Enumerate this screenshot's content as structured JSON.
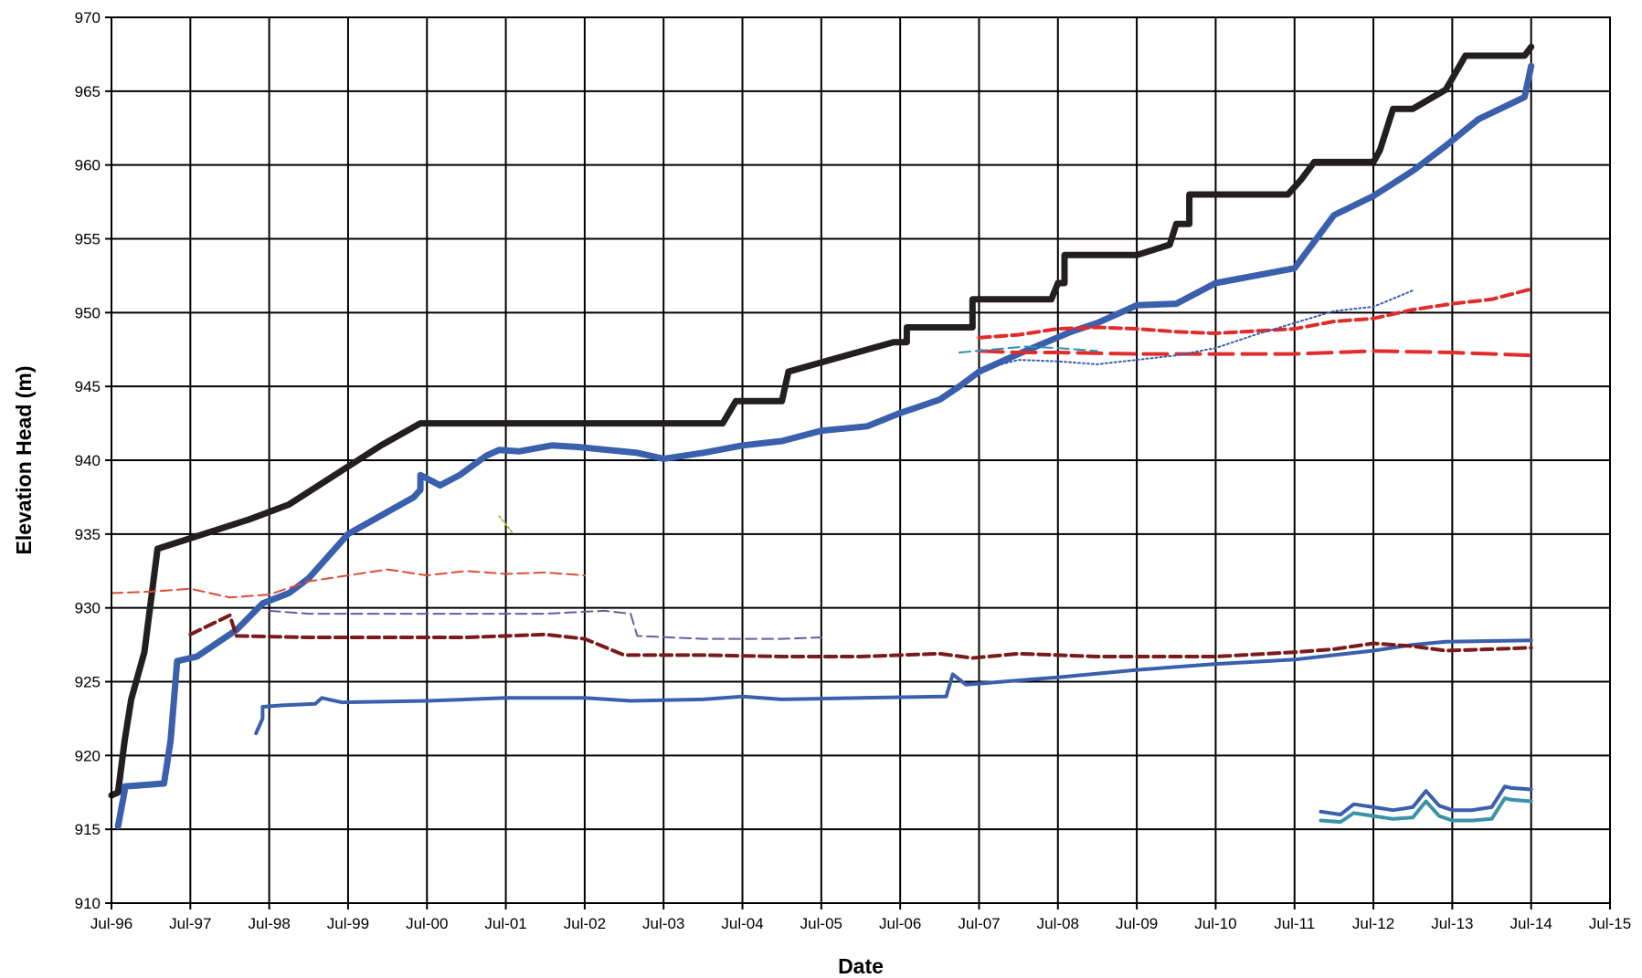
{
  "chart_data": {
    "type": "line",
    "title": "",
    "xlabel": "Date",
    "ylabel": "Elevation Head (m)",
    "x_axis": {
      "type": "date",
      "min": "1996-07",
      "max": "2015-07"
    },
    "ylim": [
      910,
      970
    ],
    "x_tick_labels": [
      "Jul-96",
      "Jul-97",
      "Jul-98",
      "Jul-99",
      "Jul-00",
      "Jul-01",
      "Jul-02",
      "Jul-03",
      "Jul-04",
      "Jul-05",
      "Jul-06",
      "Jul-07",
      "Jul-08",
      "Jul-09",
      "Jul-10",
      "Jul-11",
      "Jul-12",
      "Jul-13",
      "Jul-14",
      "Jul-15"
    ],
    "y_tick_labels": [
      "910",
      "915",
      "920",
      "925",
      "930",
      "935",
      "940",
      "945",
      "950",
      "955",
      "960",
      "965",
      "970"
    ],
    "grid": true,
    "legend": "none",
    "series": [
      {
        "color": "#231f20",
        "style": "solid",
        "weight": "heavy",
        "x": [
          "1996-07",
          "1996-08",
          "1996-09",
          "1996-10",
          "1996-10",
          "1996-12",
          "1996-12",
          "1997-02",
          "1997-02",
          "1998-04",
          "1998-04",
          "1998-10",
          "1998-10",
          "1999-12",
          "1999-12",
          "2000-06",
          "2000-06",
          "2004-04",
          "2004-06",
          "2004-06",
          "2005-01",
          "2005-02",
          "2006-06",
          "2006-08",
          "2006-08",
          "2007-06",
          "2007-06",
          "2008-06",
          "2008-07",
          "2008-08",
          "2008-08",
          "2009-07",
          "2009-12",
          "2010-01",
          "2010-03",
          "2010-03",
          "2011-06",
          "2011-08",
          "2011-10",
          "2012-07",
          "2012-08",
          "2012-10",
          "2013-01",
          "2013-06",
          "2013-09",
          "2014-06",
          "2014-07"
        ],
        "y": [
          917.3,
          917.5,
          921,
          923.8,
          923.8,
          927,
          927,
          934,
          934,
          936,
          936,
          937,
          937,
          941,
          941,
          942.5,
          942.5,
          942.5,
          944,
          944,
          944,
          946,
          948,
          948,
          949,
          949,
          950.9,
          950.9,
          952,
          952,
          953.9,
          953.9,
          954.6,
          956,
          956,
          958,
          958,
          959,
          960.2,
          960.2,
          961,
          963.8,
          963.8,
          965.1,
          967.4,
          967.4,
          968
        ]
      },
      {
        "color": "#3a5fad",
        "style": "solid",
        "weight": "heavy",
        "x": [
          "1996-08",
          "1996-09",
          "1996-09",
          "1997-03",
          "1997-04",
          "1997-05",
          "1997-08",
          "1998-02",
          "1998-06",
          "1998-10",
          "1999-01",
          "1999-07",
          "1999-11",
          "2000-05",
          "2000-06",
          "2000-06",
          "2000-09",
          "2000-12",
          "2001-04",
          "2001-06",
          "2001-09",
          "2002-02",
          "2002-06",
          "2003-03",
          "2003-07",
          "2004-01",
          "2004-07",
          "2005-01",
          "2005-07",
          "2006-02",
          "2006-07",
          "2007-01",
          "2007-04",
          "2007-07",
          "2008-01",
          "2008-09",
          "2009-01",
          "2009-07",
          "2010-01",
          "2010-07",
          "2011-07",
          "2012-01",
          "2012-07",
          "2013-01",
          "2013-06",
          "2013-11",
          "2014-06",
          "2014-07"
        ],
        "y": [
          915.2,
          917.6,
          917.9,
          918.1,
          921,
          926.4,
          926.7,
          928.5,
          930.3,
          931,
          932,
          935,
          936,
          937.5,
          938,
          939,
          938.3,
          939,
          940.3,
          940.7,
          940.6,
          941,
          940.9,
          940.5,
          940.1,
          940.5,
          941,
          941.3,
          942,
          942.3,
          943.2,
          944.1,
          945,
          946,
          947.2,
          948.7,
          949.3,
          950.5,
          950.6,
          952,
          953,
          956.6,
          957.9,
          959.6,
          961.3,
          963.1,
          964.6,
          966.7
        ]
      },
      {
        "color": "#3a5fad",
        "style": "solid",
        "weight": "medium",
        "x": [
          "1998-05",
          "1998-06",
          "1998-06",
          "1998-09",
          "1999-02",
          "1999-03",
          "1999-06",
          "2000-07",
          "2001-07",
          "2002-07",
          "2003-02",
          "2004-01",
          "2004-07",
          "2005-01",
          "2006-01",
          "2007-02",
          "2007-03",
          "2007-05",
          "2008-07",
          "2009-07",
          "2010-07",
          "2011-07",
          "2012-01",
          "2012-07",
          "2013-01",
          "2013-06",
          "2014-07"
        ],
        "y": [
          921.5,
          922.5,
          923.3,
          923.4,
          923.5,
          923.9,
          923.6,
          923.7,
          923.9,
          923.9,
          923.7,
          923.8,
          924,
          923.8,
          923.9,
          924,
          925.5,
          924.8,
          925.3,
          925.8,
          926.2,
          926.5,
          926.8,
          927.1,
          927.5,
          927.7,
          927.8
        ]
      },
      {
        "color": "#7a1a1a",
        "style": "dashed",
        "weight": "medium",
        "x": [
          "1997-07",
          "1998-01",
          "1998-02",
          "1999-01",
          "2000-01",
          "2001-01",
          "2002-01",
          "2002-07",
          "2003-01",
          "2004-01",
          "2005-01",
          "2006-01",
          "2007-01",
          "2007-06",
          "2008-01",
          "2009-01",
          "2010-07",
          "2011-07",
          "2012-01",
          "2012-07",
          "2013-01",
          "2013-06",
          "2014-01",
          "2014-07"
        ],
        "y": [
          928.2,
          929.5,
          928.1,
          928,
          928,
          928,
          928.2,
          927.9,
          926.8,
          926.8,
          926.7,
          926.7,
          926.9,
          926.6,
          926.9,
          926.7,
          926.7,
          927,
          927.2,
          927.6,
          927.4,
          927.1,
          927.2,
          927.3
        ]
      },
      {
        "color": "#d94d3a",
        "style": "dashed",
        "weight": "thin",
        "x": [
          "1996-07",
          "1997-01",
          "1997-07",
          "1998-01",
          "1998-07",
          "1999-01",
          "1999-07",
          "2000-01",
          "2000-07",
          "2001-01",
          "2001-07",
          "2002-01",
          "2002-07"
        ],
        "y": [
          931,
          931.1,
          931.3,
          930.7,
          930.9,
          931.8,
          932.2,
          932.6,
          932.2,
          932.5,
          932.3,
          932.4,
          932.2
        ]
      },
      {
        "color": "#6b5a9a",
        "style": "dashed",
        "weight": "thin",
        "x": [
          "1998-07",
          "1999-01",
          "2000-01",
          "2001-01",
          "2002-01",
          "2002-10",
          "2003-02",
          "2003-03",
          "2004-01",
          "2005-01",
          "2005-07"
        ],
        "y": [
          929.8,
          929.6,
          929.6,
          929.6,
          929.6,
          929.8,
          929.6,
          928.1,
          927.9,
          927.9,
          928
        ]
      },
      {
        "color": "#a8b832",
        "style": "dotted",
        "weight": "thin",
        "x": [
          "2001-06",
          "2001-08"
        ],
        "y": [
          936.2,
          935.1
        ]
      },
      {
        "color": "#e22b2b",
        "style": "dashed",
        "weight": "medium",
        "x": [
          "2007-07",
          "2008-01",
          "2008-07",
          "2009-01",
          "2009-07",
          "2010-01",
          "2010-07",
          "2011-07",
          "2012-01",
          "2012-07",
          "2013-01",
          "2013-07",
          "2014-01",
          "2014-07"
        ],
        "y": [
          948.3,
          948.5,
          948.9,
          949,
          948.9,
          948.7,
          948.6,
          948.9,
          949.4,
          949.6,
          950.2,
          950.6,
          950.9,
          951.6
        ]
      },
      {
        "color": "#e22b2b",
        "style": "longdash",
        "weight": "medium",
        "x": [
          "2007-07",
          "2008-01",
          "2008-07",
          "2009-07",
          "2010-07",
          "2011-07",
          "2012-01",
          "2012-07",
          "2013-07",
          "2014-07"
        ],
        "y": [
          947.4,
          947.3,
          947.3,
          947.2,
          947.2,
          947.2,
          947.3,
          947.4,
          947.3,
          947.1
        ]
      },
      {
        "color": "#2e8fb5",
        "style": "dashed",
        "weight": "thin",
        "x": [
          "2007-04",
          "2007-09",
          "2008-02",
          "2008-07",
          "2009-01"
        ],
        "y": [
          947.3,
          947.5,
          947.7,
          947.6,
          947.4
        ]
      },
      {
        "color": "#3a5fad",
        "style": "dotted",
        "weight": "thin",
        "x": [
          "2007-07",
          "2008-01",
          "2008-07",
          "2009-01",
          "2009-07",
          "2010-01",
          "2010-07",
          "2011-01",
          "2011-07",
          "2012-01",
          "2012-07",
          "2013-01"
        ],
        "y": [
          946.1,
          946.8,
          946.7,
          946.5,
          946.8,
          947.1,
          947.6,
          948.5,
          949.3,
          950.1,
          950.4,
          951.5
        ]
      },
      {
        "color": "#3a5fad",
        "style": "solid",
        "weight": "medium",
        "x": [
          "2011-11",
          "2012-02",
          "2012-04",
          "2012-07",
          "2012-10",
          "2013-01",
          "2013-03",
          "2013-05",
          "2013-07",
          "2013-10",
          "2014-01",
          "2014-03",
          "2014-04",
          "2014-07"
        ],
        "y": [
          916.2,
          916,
          916.7,
          916.5,
          916.3,
          916.5,
          917.6,
          916.6,
          916.3,
          916.3,
          916.5,
          917.9,
          917.8,
          917.7
        ]
      },
      {
        "color": "#3a93a6",
        "style": "solid",
        "weight": "medium",
        "x": [
          "2011-11",
          "2012-02",
          "2012-04",
          "2012-07",
          "2012-10",
          "2013-01",
          "2013-03",
          "2013-05",
          "2013-07",
          "2013-10",
          "2014-01",
          "2014-03",
          "2014-04",
          "2014-07"
        ],
        "y": [
          915.6,
          915.5,
          916.1,
          915.9,
          915.7,
          915.8,
          916.9,
          915.9,
          915.6,
          915.6,
          915.7,
          917.1,
          917,
          916.9
        ]
      }
    ]
  }
}
